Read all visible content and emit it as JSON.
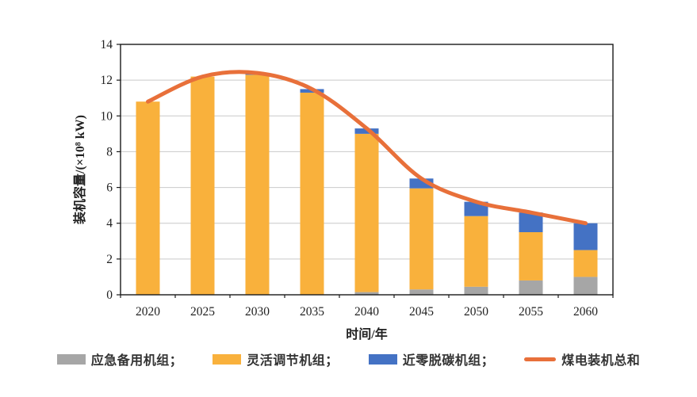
{
  "chart_data": {
    "type": "bar",
    "subtype": "stacked-bars-with-total-line",
    "categories": [
      "2020",
      "2025",
      "2030",
      "2035",
      "2040",
      "2045",
      "2050",
      "2055",
      "2060"
    ],
    "series": [
      {
        "name": "应急备用机组",
        "type": "bar",
        "color": "#A6A6A6",
        "values": [
          0,
          0,
          0,
          0,
          0.15,
          0.3,
          0.45,
          0.8,
          1.0
        ]
      },
      {
        "name": "灵活调节机组",
        "type": "bar",
        "color": "#F9B13C",
        "values": [
          10.8,
          12.2,
          12.3,
          11.3,
          8.85,
          5.65,
          3.95,
          2.7,
          1.5
        ]
      },
      {
        "name": "近零脱碳机组",
        "type": "bar",
        "color": "#4472C4",
        "values": [
          0,
          0,
          0.1,
          0.2,
          0.3,
          0.55,
          0.8,
          1.1,
          1.5
        ]
      },
      {
        "name": "煤电装机总和",
        "type": "line",
        "color": "#E8703A",
        "values": [
          10.8,
          12.2,
          12.4,
          11.5,
          9.3,
          6.5,
          5.2,
          4.6,
          4.0
        ]
      }
    ],
    "title": "",
    "xlabel": "时间/年",
    "ylabel": "装机容量/(×10⁸ kW)",
    "ylim": [
      0,
      14
    ],
    "ytick_step": 2,
    "grid": true,
    "gridline_color": "#C9C9C9",
    "frame_color": "#1a1a1a",
    "legend_position": "bottom"
  },
  "legend": {
    "items": [
      {
        "label": "应急备用机组；",
        "color": "#A6A6A6",
        "kind": "rect"
      },
      {
        "label": "灵活调节机组；",
        "color": "#F9B13C",
        "kind": "rect"
      },
      {
        "label": "近零脱碳机组；",
        "color": "#4472C4",
        "kind": "rect"
      },
      {
        "label": "煤电装机总和",
        "color": "#E8703A",
        "kind": "line"
      }
    ]
  }
}
